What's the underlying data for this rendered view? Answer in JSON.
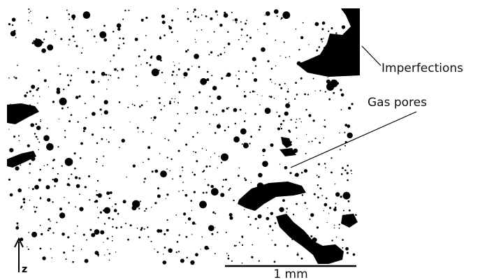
{
  "labels": {
    "imperfections": "Imperfections",
    "gas_pores": "Gas pores"
  },
  "scale_bar": {
    "label": "1 mm"
  },
  "axis": {
    "label": "z"
  }
}
